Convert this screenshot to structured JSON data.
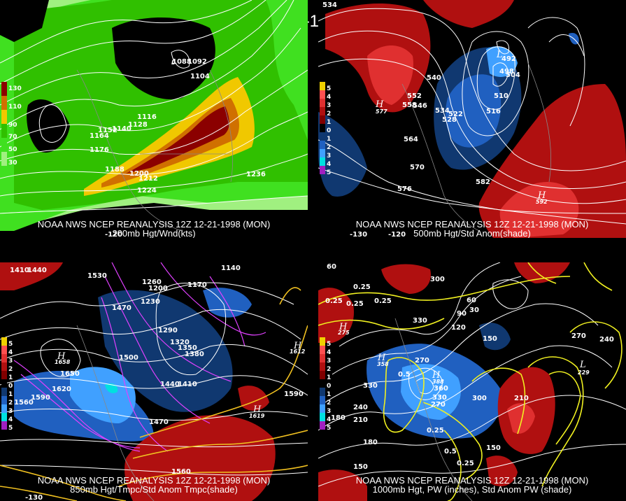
{
  "title": "12Z 12-21-1998 (MON)",
  "panels": [
    {
      "line1": "NOAA NWS NCEP REANALYSIS 12Z 12-21-1998 (MON)",
      "line2": "200mb Hgt/Wnd(kts)",
      "legend": [
        {
          "label": "130",
          "color": "#8b0000"
        },
        {
          "label": "110",
          "color": "#d07000"
        },
        {
          "label": "90",
          "color": "#f0c800"
        },
        {
          "label": "70",
          "color": "#30c000"
        },
        {
          "label": "50",
          "color": "#40e020"
        },
        {
          "label": "30",
          "color": "#a0f080"
        }
      ],
      "contour_labels": [
        "1092",
        "1104",
        "1116",
        "1128",
        "1140",
        "1152",
        "1164",
        "1176",
        "1188",
        "1200",
        "1212",
        "1224",
        "1236"
      ],
      "highs_lows": [
        {
          "type": "L",
          "value": "1088"
        }
      ],
      "lon_labels": [
        "-120"
      ]
    },
    {
      "line1": "NOAA NWS NCEP REANALYSIS 12Z 12-21-1998 (MON)",
      "line2": "500mb Hgt/Std Anom(shade)",
      "legend": [
        {
          "label": "5",
          "color": "#f0d000"
        },
        {
          "label": "4",
          "color": "#ff5050"
        },
        {
          "label": "3",
          "color": "#e03030"
        },
        {
          "label": "2",
          "color": "#b01010"
        },
        {
          "label": "1",
          "color": "#800000"
        },
        {
          "label": "0",
          "color": "#000000"
        },
        {
          "label": "1",
          "color": "#103870"
        },
        {
          "label": "2",
          "color": "#2060c0"
        },
        {
          "label": "3",
          "color": "#40a0ff"
        },
        {
          "label": "4",
          "color": "#00e0e0"
        },
        {
          "label": "5",
          "color": "#a020c0"
        }
      ],
      "contour_labels": [
        "534",
        "540",
        "546",
        "552",
        "558",
        "522",
        "528",
        "534",
        "564",
        "570",
        "576",
        "582",
        "492",
        "498",
        "504",
        "510",
        "516"
      ],
      "highs_lows": [
        {
          "type": "H",
          "value": "577"
        },
        {
          "type": "H",
          "value": "592"
        },
        {
          "type": "L",
          "value": ""
        }
      ],
      "lon_labels": [
        "-130",
        "-120"
      ]
    },
    {
      "line1": "NOAA NWS NCEP REANALYSIS 12Z 12-21-1998 (MON)",
      "line2": "850mb Hgt/Tmpc/Std Anom Tmpc(shade)",
      "legend": [
        {
          "label": "5",
          "color": "#f0d000"
        },
        {
          "label": "4",
          "color": "#ff5050"
        },
        {
          "label": "3",
          "color": "#e03030"
        },
        {
          "label": "2",
          "color": "#b01010"
        },
        {
          "label": "1",
          "color": "#800000"
        },
        {
          "label": "0",
          "color": "#000000"
        },
        {
          "label": "1",
          "color": "#103870"
        },
        {
          "label": "2",
          "color": "#2060c0"
        },
        {
          "label": "3",
          "color": "#40a0ff"
        },
        {
          "label": "4",
          "color": "#00e0e0"
        },
        {
          "label": "5",
          "color": "#a020c0"
        }
      ],
      "contour_labels": [
        "1410",
        "1440",
        "1530",
        "1260",
        "1230",
        "1200",
        "1170",
        "1140",
        "1470",
        "1290",
        "1320",
        "1350",
        "1380",
        "1500",
        "1650",
        "1620",
        "1590",
        "1560",
        "1440",
        "1410",
        "1470",
        "1590",
        "1560"
      ],
      "highs_lows": [
        {
          "type": "H",
          "value": "1658"
        },
        {
          "type": "H",
          "value": "1612"
        },
        {
          "type": "H",
          "value": "1619"
        }
      ],
      "lon_labels": [
        "-130"
      ]
    },
    {
      "line1": "NOAA NWS NCEP REANALYSIS 12Z 12-21-1998 (MON)",
      "line2": "1000mb Hgt, PW (inches), Std Anom PW (shade)",
      "legend": [
        {
          "label": "5",
          "color": "#f0d000"
        },
        {
          "label": "4",
          "color": "#ff5050"
        },
        {
          "label": "3",
          "color": "#e03030"
        },
        {
          "label": "2",
          "color": "#b01010"
        },
        {
          "label": "1",
          "color": "#800000"
        },
        {
          "label": "0",
          "color": "#000000"
        },
        {
          "label": "1",
          "color": "#103870"
        },
        {
          "label": "2",
          "color": "#2060c0"
        },
        {
          "label": "3",
          "color": "#40a0ff"
        },
        {
          "label": "4",
          "color": "#00e0e0"
        },
        {
          "label": "5",
          "color": "#a020c0"
        }
      ],
      "contour_labels": [
        "60",
        "300",
        "0.25",
        "0.25",
        "0.25",
        "0.25",
        "330",
        "120",
        "90",
        "60",
        "30",
        "150",
        "270",
        "240",
        "330",
        "360",
        "330",
        "270",
        "300",
        "0.5",
        "0.25",
        "0.5",
        "0.25",
        "180",
        "150",
        "210",
        "240",
        "150",
        "210",
        "180",
        "270"
      ],
      "highs_lows": [
        {
          "type": "H",
          "value": "358"
        },
        {
          "type": "H",
          "value": "388"
        },
        {
          "type": "L",
          "value": "229"
        },
        {
          "type": "H",
          "value": "275"
        }
      ],
      "lon_labels": []
    }
  ]
}
